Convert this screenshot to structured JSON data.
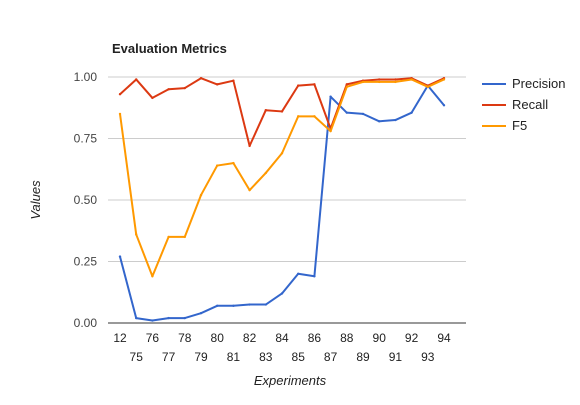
{
  "chart_data": {
    "type": "line",
    "title": "Evaluation Metrics",
    "xlabel": "Experiments",
    "ylabel": "Values",
    "ylim": [
      0,
      1
    ],
    "yticks": [
      "0.00",
      "0.25",
      "0.50",
      "0.75",
      "1.00"
    ],
    "categories": [
      "12",
      "75",
      "76",
      "77",
      "78",
      "79",
      "80",
      "81",
      "82",
      "83",
      "84",
      "85",
      "86",
      "87",
      "88",
      "89",
      "90",
      "91",
      "92",
      "93",
      "94"
    ],
    "grid": true,
    "legend_position": "right",
    "series": [
      {
        "name": "Precision",
        "color": "#3366cc",
        "values": [
          0.27,
          0.02,
          0.01,
          0.02,
          0.02,
          0.04,
          0.07,
          0.07,
          0.075,
          0.075,
          0.12,
          0.2,
          0.19,
          0.92,
          0.855,
          0.85,
          0.82,
          0.825,
          0.855,
          0.965,
          0.885
        ]
      },
      {
        "name": "Recall",
        "color": "#dc3912",
        "values": [
          0.93,
          0.99,
          0.915,
          0.95,
          0.955,
          0.995,
          0.97,
          0.985,
          0.72,
          0.865,
          0.86,
          0.965,
          0.97,
          0.79,
          0.97,
          0.985,
          0.99,
          0.99,
          0.995,
          0.965,
          0.995
        ]
      },
      {
        "name": "F5",
        "color": "#ff9900",
        "values": [
          0.85,
          0.36,
          0.19,
          0.35,
          0.35,
          0.52,
          0.64,
          0.65,
          0.54,
          0.61,
          0.69,
          0.84,
          0.84,
          0.78,
          0.96,
          0.98,
          0.98,
          0.98,
          0.99,
          0.96,
          0.99
        ]
      }
    ]
  }
}
